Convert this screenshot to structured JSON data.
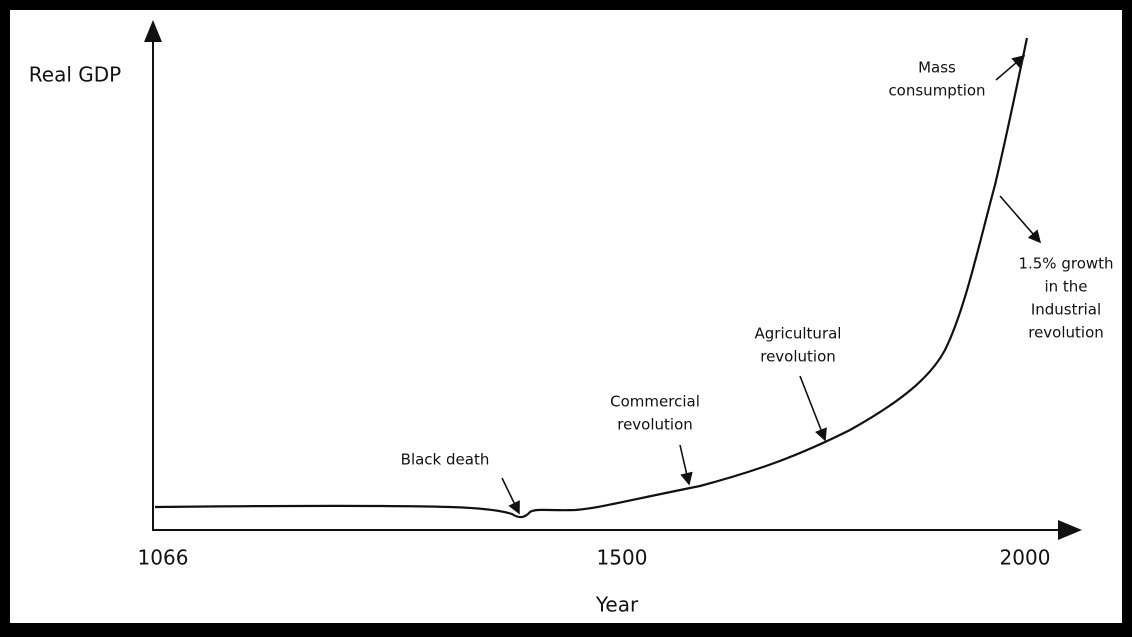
{
  "axes": {
    "y_label": "Real GDP",
    "x_label": "Year",
    "x_tick_labels": [
      "1066",
      "1500",
      "2000"
    ]
  },
  "annotations": [
    {
      "lines": [
        "Black death"
      ]
    },
    {
      "lines": [
        "Commercial",
        "revolution"
      ]
    },
    {
      "lines": [
        "Agricultural",
        "revolution"
      ]
    },
    {
      "lines": [
        "Mass",
        "consumption"
      ]
    },
    {
      "lines": [
        "1.5% growth",
        "in the",
        "Industrial",
        "revolution"
      ]
    }
  ]
}
